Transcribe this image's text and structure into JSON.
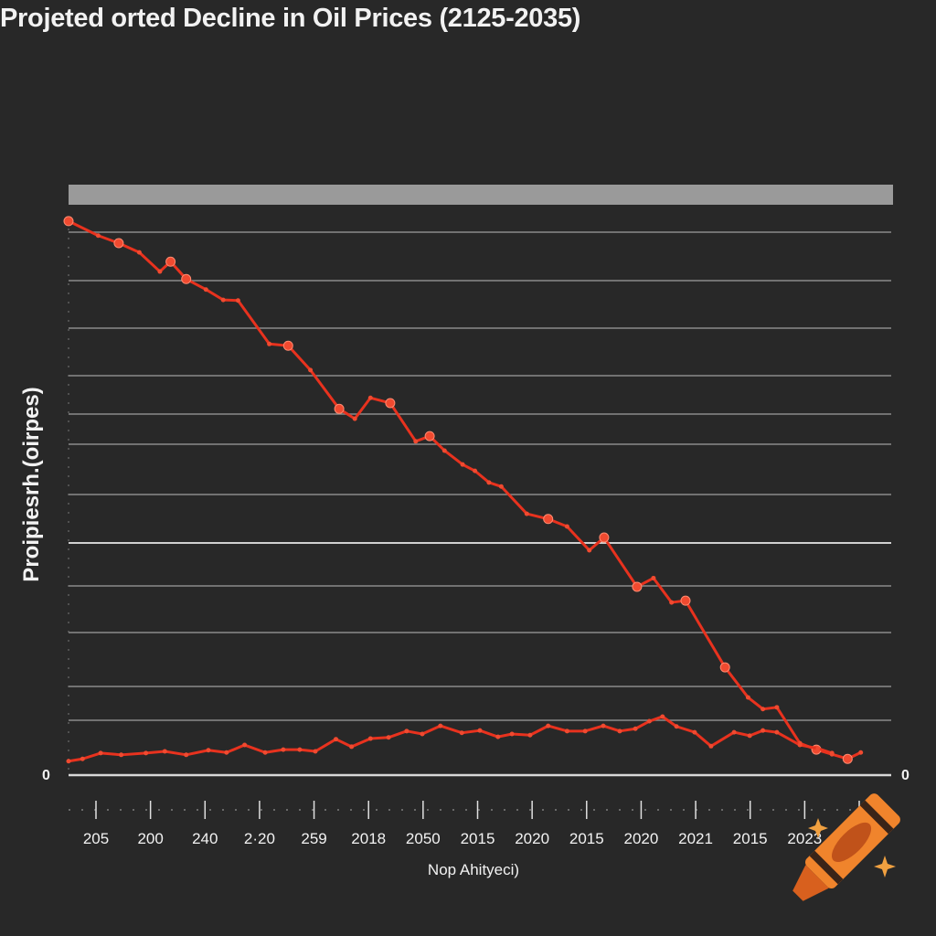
{
  "chart_data": {
    "type": "line",
    "title": "Projeted  orted Decline in Oil Prices (2125-2035)",
    "xlabel": "Nop Ahityeci)",
    "ylabel": "Proipiesrh.(oirpes)",
    "y_tick_labels": {
      "left": "0",
      "right": "0"
    },
    "x_tick_labels": [
      "205",
      "200",
      "240",
      "2·20",
      "259",
      "2018",
      "2050",
      "2015",
      "2020",
      "2015",
      "2020",
      "2021",
      "2015",
      "2023",
      ""
    ],
    "xlim": [
      0,
      100
    ],
    "ylim": [
      0,
      100
    ],
    "grid": true,
    "colors": {
      "series": "#e8321e",
      "marker": "#f04a30",
      "background": "#282828",
      "grid": "#8a8a8a",
      "band": "#9a9a9a",
      "crayon": "#f0842c"
    },
    "series": [
      {
        "x": [
          0,
          3.6,
          6.1,
          8.6,
          11.1,
          12.4,
          14.3,
          16.7,
          18.8,
          20.6,
          24.4,
          26.7,
          29.4,
          32.9,
          34.8,
          36.7,
          39.1,
          42.2,
          43.9,
          45.7,
          47.9,
          49.4,
          51.1,
          52.6,
          55.7,
          58.3,
          60.6,
          63.3,
          65.1,
          69.1,
          71.1,
          73.3,
          75.0,
          79.8,
          82.6,
          84.4,
          86.1,
          88.9,
          90.9,
          92.8,
          94.7,
          96.3
        ],
        "y": [
          95.6,
          93.1,
          91.8,
          90.2,
          86.9,
          88.6,
          85.6,
          83.8,
          82.0,
          81.9,
          74.4,
          74.1,
          69.9,
          63.2,
          61.5,
          65.1,
          64.2,
          57.6,
          58.5,
          56.0,
          53.6,
          52.5,
          50.5,
          49.8,
          45.1,
          44.2,
          42.9,
          38.8,
          41.0,
          32.5,
          34.0,
          29.8,
          30.1,
          18.6,
          13.4,
          11.4,
          11.7,
          5.5,
          4.4,
          3.6,
          2.8,
          3.9
        ]
      },
      {
        "x": [
          0,
          1.7,
          3.9,
          6.4,
          9.4,
          11.7,
          14.3,
          17.0,
          19.2,
          21.4,
          23.9,
          26.1,
          28.1,
          30.0,
          32.5,
          34.4,
          36.7,
          38.9,
          41.1,
          43.0,
          45.2,
          47.8,
          50.0,
          52.2,
          53.9,
          56.1,
          58.3,
          60.6,
          62.8,
          65.0,
          67.0,
          68.9,
          70.6,
          72.2,
          73.9,
          76.1,
          78.1,
          80.9,
          82.8,
          84.4,
          86.1,
          88.9,
          91.1,
          92.8
        ],
        "y": [
          2.4,
          2.8,
          3.8,
          3.5,
          3.8,
          4.1,
          3.5,
          4.3,
          3.9,
          5.2,
          3.9,
          4.4,
          4.4,
          4.1,
          6.2,
          4.9,
          6.3,
          6.5,
          7.6,
          7.1,
          8.5,
          7.3,
          7.7,
          6.6,
          7.1,
          6.9,
          8.5,
          7.6,
          7.6,
          8.5,
          7.6,
          8.0,
          9.3,
          10.1,
          8.4,
          7.4,
          5.0,
          7.4,
          6.8,
          7.7,
          7.4,
          5.2,
          4.6,
          3.8
        ]
      }
    ],
    "icons": [
      "crayon-icon",
      "sparkle-icon"
    ]
  }
}
